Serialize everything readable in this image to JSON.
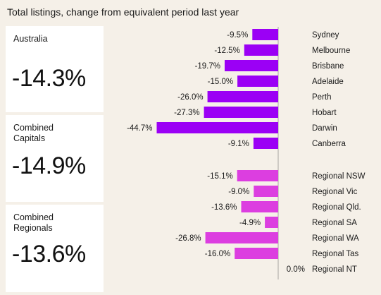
{
  "title": "Total listings, change from equivalent period last year",
  "summary_cards": [
    {
      "label": "Australia",
      "value": "-14.3%"
    },
    {
      "label": "Combined\nCapitals",
      "value": "-14.9%"
    },
    {
      "label": "Combined\nRegionals",
      "value": "-13.6%"
    }
  ],
  "colors": {
    "capitals": "#9b00f5",
    "regionals": "#dc3ee0",
    "background": "#f5f0e8",
    "axis": "#a8a4a0"
  },
  "chart_data": {
    "type": "bar",
    "orientation": "horizontal",
    "title": "Total listings, change from equivalent period last year",
    "value_suffix": "%",
    "categories": [
      "Sydney",
      "Melbourne",
      "Brisbane",
      "Adelaide",
      "Perth",
      "Hobart",
      "Darwin",
      "Canberra",
      "Regional NSW",
      "Regional Vic",
      "Regional Qld.",
      "Regional SA",
      "Regional WA",
      "Regional Tas",
      "Regional NT"
    ],
    "values": [
      -9.5,
      -12.5,
      -19.7,
      -15.0,
      -26.0,
      -27.3,
      -44.7,
      -9.1,
      -15.1,
      -9.0,
      -13.6,
      -4.9,
      -26.8,
      -16.0,
      0.0
    ],
    "labels": [
      "-9.5%",
      "-12.5%",
      "-19.7%",
      "-15.0%",
      "-26.0%",
      "-27.3%",
      "-44.7%",
      "-9.1%",
      "-15.1%",
      "-9.0%",
      "-13.6%",
      "-4.9%",
      "-26.8%",
      "-16.0%",
      "0.0%"
    ],
    "groups": [
      "capitals",
      "capitals",
      "capitals",
      "capitals",
      "capitals",
      "capitals",
      "capitals",
      "capitals",
      "regionals",
      "regionals",
      "regionals",
      "regionals",
      "regionals",
      "regionals",
      "regionals"
    ]
  }
}
